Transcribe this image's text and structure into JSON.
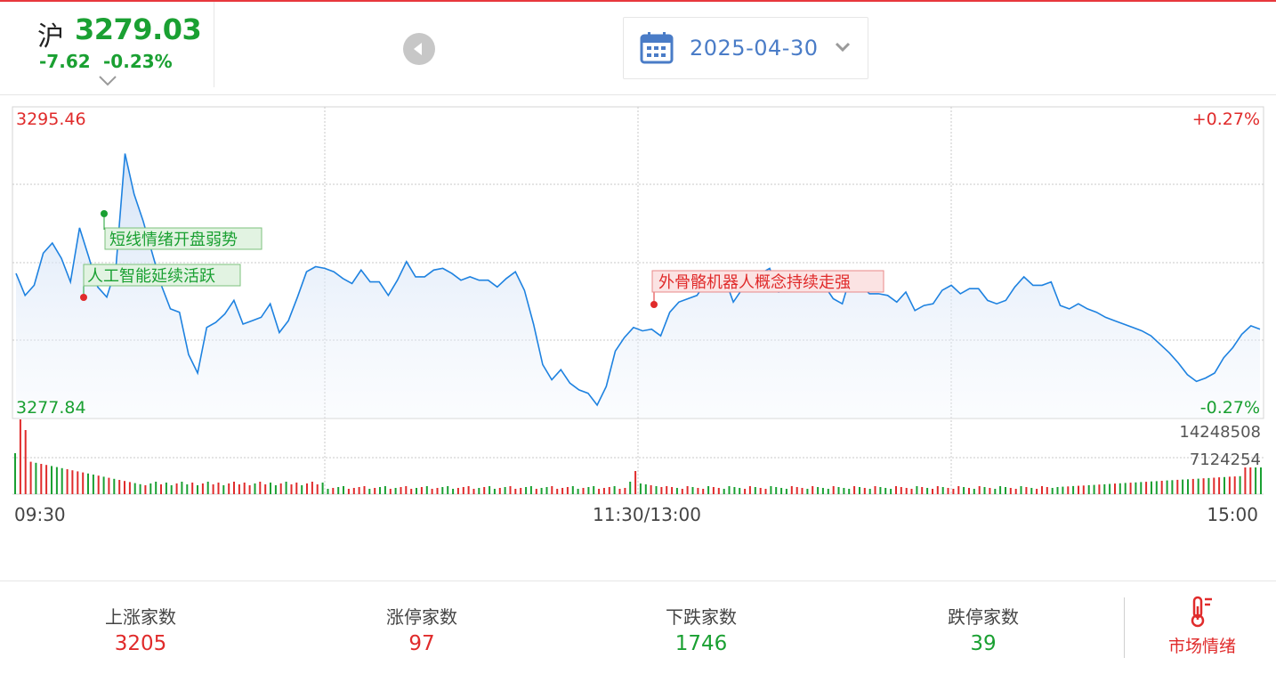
{
  "header": {
    "index_name": "沪",
    "price": "3279.03",
    "change": "-7.62",
    "change_pct": "-0.23%",
    "date": "2025-04-30"
  },
  "chart_data": {
    "type": "line",
    "y_max_label": "3295.46",
    "y_min_label": "3277.84",
    "pct_max_label": "+0.27%",
    "pct_min_label": "-0.27%",
    "y_max": 3295.46,
    "y_min": 3277.84,
    "x_labels": [
      "09:30",
      "11:30/13:00",
      "15:00"
    ],
    "volume_labels": [
      "14248508",
      "7124254"
    ],
    "volume_max": 14248508,
    "price": [
      3285.8,
      3284.5,
      3285.1,
      3287.0,
      3287.6,
      3286.7,
      3285.3,
      3288.5,
      3286.8,
      3285.0,
      3284.4,
      3286.1,
      3292.9,
      3290.5,
      3288.9,
      3287.0,
      3285.1,
      3283.7,
      3283.5,
      3281.0,
      3279.9,
      3282.6,
      3282.9,
      3283.4,
      3284.2,
      3282.8,
      3283.0,
      3283.2,
      3284.0,
      3282.3,
      3283.0,
      3284.4,
      3285.9,
      3286.2,
      3286.1,
      3285.9,
      3285.5,
      3285.2,
      3286.0,
      3285.3,
      3285.3,
      3284.5,
      3285.4,
      3286.5,
      3285.6,
      3285.6,
      3286.0,
      3286.1,
      3285.8,
      3285.4,
      3285.6,
      3285.4,
      3285.4,
      3285.0,
      3285.5,
      3285.9,
      3284.8,
      3282.8,
      3280.4,
      3279.5,
      3280.1,
      3279.3,
      3278.9,
      3278.7,
      3278.0,
      3279.1,
      3281.2,
      3282.0,
      3282.6,
      3282.4,
      3282.5,
      3282.1,
      3283.5,
      3284.1,
      3284.3,
      3284.5,
      3285.3,
      3285.6,
      3285.6,
      3284.1,
      3284.9,
      3285.2,
      3285.8,
      3286.1,
      3284.7,
      3284.9,
      3285.6,
      3285.3,
      3285.6,
      3285.1,
      3284.3,
      3284.0,
      3285.8,
      3285.1,
      3284.6,
      3284.6,
      3284.5,
      3284.1,
      3284.7,
      3283.6,
      3283.9,
      3284.0,
      3284.8,
      3285.1,
      3284.6,
      3284.9,
      3284.9,
      3284.2,
      3284.0,
      3284.2,
      3285.0,
      3285.6,
      3285.1,
      3285.1,
      3285.3,
      3283.9,
      3283.7,
      3284.0,
      3283.7,
      3283.5,
      3283.2,
      3283.0,
      3282.8,
      3282.6,
      3282.4,
      3282.1,
      3281.6,
      3281.1,
      3280.5,
      3279.8,
      3279.4,
      3279.6,
      3279.9,
      3280.8,
      3281.4,
      3282.2,
      3282.7,
      3282.5
    ],
    "events": [
      {
        "label": "短线情绪开盘弱势",
        "sentiment": "negative"
      },
      {
        "label": "人工智能延续活跃",
        "sentiment": "positive"
      },
      {
        "label": "外骨骼机器人概念持续走强",
        "sentiment": "positive"
      }
    ],
    "grid": true
  },
  "stats": [
    {
      "label": "上涨家数",
      "value": "3205",
      "color": "#e02b2b"
    },
    {
      "label": "涨停家数",
      "value": "97",
      "color": "#e02b2b"
    },
    {
      "label": "下跌家数",
      "value": "1746",
      "color": "#1aa032"
    },
    {
      "label": "跌停家数",
      "value": "39",
      "color": "#1aa032"
    }
  ],
  "mood": {
    "label": "市场情绪",
    "icon": "thermometer-icon"
  },
  "colors": {
    "up": "#e02b2b",
    "down": "#1aa032",
    "line": "#1e82e0",
    "accent_date": "#4a7cc7"
  }
}
